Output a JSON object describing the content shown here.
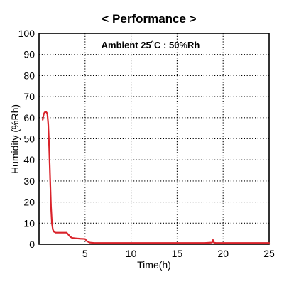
{
  "chart_data": {
    "type": "line",
    "title": "< Performance >",
    "annotation": "Ambient 25˚C : 50%Rh",
    "xlabel": "Time(h)",
    "ylabel": "Humidity (%Rh)",
    "xlim": [
      0,
      25
    ],
    "ylim": [
      0,
      100
    ],
    "x_ticks": [
      5,
      10,
      15,
      20,
      25
    ],
    "y_ticks": [
      0,
      10,
      20,
      30,
      40,
      50,
      60,
      70,
      80,
      90,
      100
    ],
    "grid": true,
    "legend": false,
    "series": [
      {
        "color": "#d9222a",
        "x": [
          0.4,
          0.5,
          0.6,
          0.75,
          0.9,
          1.0,
          1.1,
          1.2,
          1.3,
          1.4,
          1.5,
          1.6,
          1.8,
          2.0,
          2.5,
          3.0,
          3.2,
          3.4,
          3.6,
          4.0,
          4.5,
          5.0,
          5.2,
          5.5,
          6.0,
          8.0,
          10.0,
          12.0,
          14.0,
          16.0,
          18.0,
          18.8,
          18.9,
          19.0,
          19.2,
          20.0,
          22.0,
          25.0
        ],
        "y": [
          59,
          61.5,
          62.5,
          62.8,
          62,
          57,
          46,
          32,
          18,
          10,
          7,
          6,
          5.5,
          5.5,
          5.5,
          5.5,
          4.5,
          3.5,
          3,
          2.8,
          2.6,
          2.5,
          1.5,
          0.8,
          0.6,
          0.6,
          0.6,
          0.6,
          0.6,
          0.6,
          0.6,
          0.8,
          2,
          0.8,
          0.6,
          0.6,
          0.6,
          0.6
        ]
      }
    ]
  }
}
